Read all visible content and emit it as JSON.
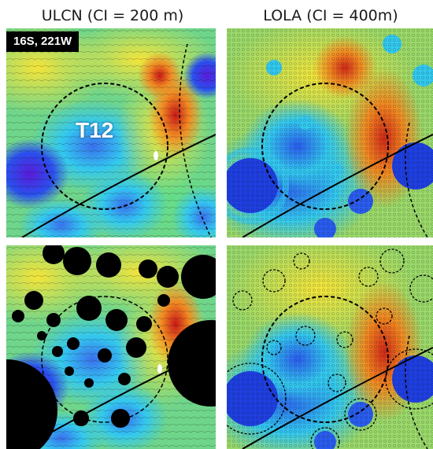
{
  "titles": {
    "ulcn": "ULCN (CI = 200 m)",
    "lola": "LOLA (CI = 400m)"
  },
  "labels": {
    "coordinates": "16S, 221W",
    "crater": "T12"
  },
  "colors": {
    "low": "#5a1bd8",
    "blue": "#2255ee",
    "cyan": "#33c8ee",
    "green": "#66dd88",
    "yellow": "#f4e43a",
    "orange": "#f08a22",
    "high": "#d8281c",
    "mask": "#000000"
  }
}
